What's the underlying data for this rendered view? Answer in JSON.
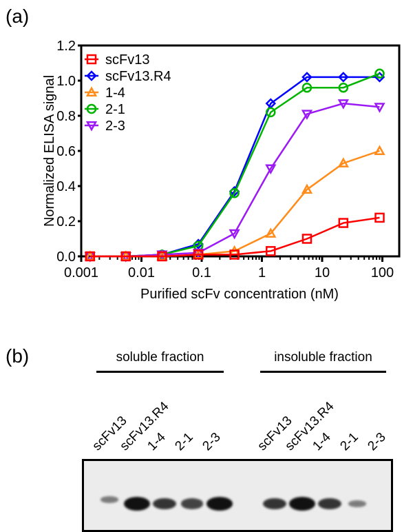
{
  "panels": {
    "a": {
      "label": "(a)"
    },
    "b": {
      "label": "(b)"
    }
  },
  "chart_data": {
    "type": "line",
    "title": "",
    "xlabel": "Purified scFv concentration (nM)",
    "ylabel": "Normalized ELISA signal",
    "xscale": "log",
    "xlim": [
      0.001,
      150
    ],
    "ylim": [
      0,
      1.2
    ],
    "xticks": [
      0.001,
      0.01,
      0.1,
      1,
      10,
      100
    ],
    "xtick_labels": [
      "0.001",
      "0.01",
      "0.1",
      "1",
      "10",
      "100"
    ],
    "yticks": [
      0,
      0.2,
      0.4,
      0.6,
      0.8,
      1.0,
      1.2
    ],
    "ytick_labels": [
      "0.0",
      "0.2",
      "0.4",
      "0.6",
      "0.8",
      "1.0",
      "1.2"
    ],
    "grid": false,
    "legend_position": "top-left",
    "x": [
      0.0014,
      0.0055,
      0.022,
      0.088,
      0.35,
      1.4,
      5.6,
      22.5,
      90
    ],
    "series": [
      {
        "name": "scFv13",
        "color": "#ff0000",
        "marker": "square",
        "values": [
          0.0,
          0.0,
          0.0,
          0.01,
          0.01,
          0.03,
          0.1,
          0.19,
          0.22
        ]
      },
      {
        "name": "scFv13.R4",
        "color": "#0000ff",
        "marker": "diamond",
        "values": [
          0.0,
          0.0,
          0.01,
          0.07,
          0.37,
          0.87,
          1.02,
          1.02,
          1.02
        ]
      },
      {
        "name": "1-4",
        "color": "#ff8c1a",
        "marker": "triangle-up",
        "values": [
          0.0,
          0.0,
          0.0,
          0.01,
          0.03,
          0.13,
          0.38,
          0.53,
          0.6
        ]
      },
      {
        "name": "2-1",
        "color": "#00b400",
        "marker": "circle",
        "values": [
          0.0,
          0.0,
          0.01,
          0.06,
          0.36,
          0.82,
          0.96,
          0.96,
          1.04
        ]
      },
      {
        "name": "2-3",
        "color": "#9b19f5",
        "marker": "triangle-down",
        "values": [
          0.0,
          0.0,
          0.01,
          0.02,
          0.13,
          0.5,
          0.81,
          0.87,
          0.85
        ]
      }
    ]
  },
  "blot": {
    "groups": [
      {
        "label": "soluble fraction",
        "lanes": [
          "scFv13",
          "scFv13.R4",
          "1-4",
          "2-1",
          "2-3"
        ],
        "intensity": [
          0.25,
          1.0,
          0.75,
          0.65,
          1.0
        ]
      },
      {
        "label": "insoluble fraction",
        "lanes": [
          "scFv13",
          "scFv13.R4",
          "1-4",
          "2-1",
          "2-3"
        ],
        "intensity": [
          0.75,
          1.0,
          0.75,
          0.25,
          0.0
        ]
      }
    ]
  }
}
